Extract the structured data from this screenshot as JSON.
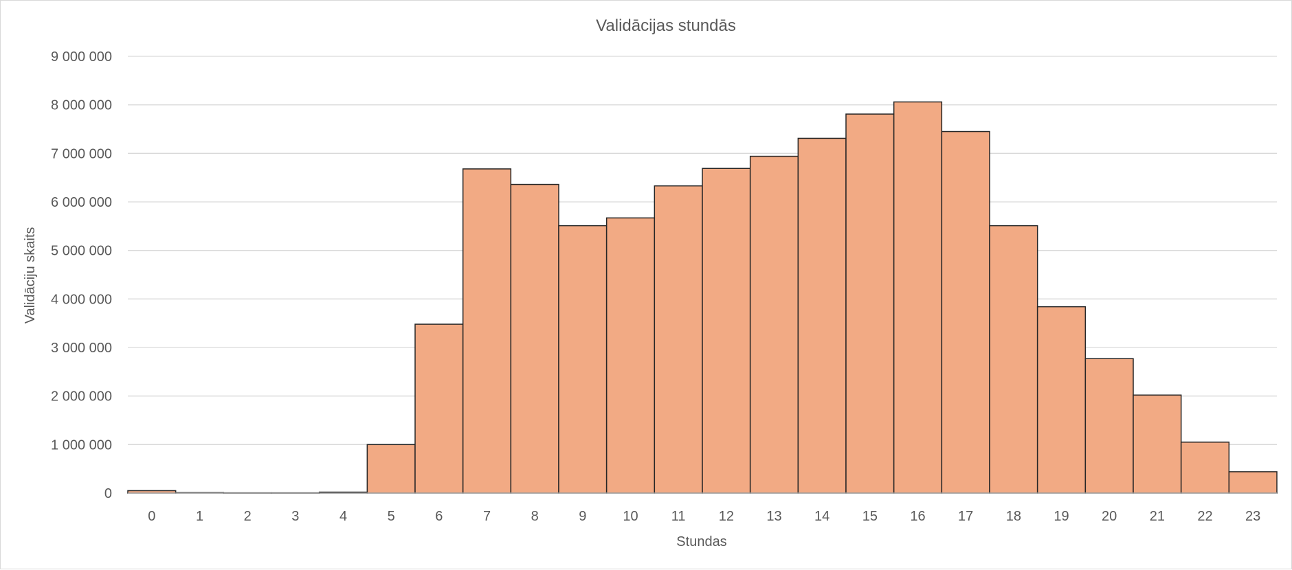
{
  "chart_data": {
    "type": "bar",
    "title": "Validācijas stundās",
    "xlabel": "Stundas",
    "ylabel": "Validāciju skaits",
    "categories": [
      "0",
      "1",
      "2",
      "3",
      "4",
      "5",
      "6",
      "7",
      "8",
      "9",
      "10",
      "11",
      "12",
      "13",
      "14",
      "15",
      "16",
      "17",
      "18",
      "19",
      "20",
      "21",
      "22",
      "23"
    ],
    "values": [
      50000,
      10000,
      5000,
      5000,
      20000,
      1000000,
      3480000,
      6680000,
      6360000,
      5510000,
      5670000,
      6330000,
      6690000,
      6940000,
      7310000,
      7810000,
      8060000,
      7450000,
      5510000,
      3840000,
      2770000,
      2020000,
      1050000,
      440000
    ],
    "ylim": [
      0,
      9000000
    ],
    "yticks": [
      0,
      1000000,
      2000000,
      3000000,
      4000000,
      5000000,
      6000000,
      7000000,
      8000000,
      9000000
    ],
    "ytick_labels": [
      "0",
      "1 000 000",
      "2 000 000",
      "3 000 000",
      "4 000 000",
      "5 000 000",
      "6 000 000",
      "7 000 000",
      "8 000 000",
      "9 000 000"
    ],
    "grid": true,
    "legend": "none",
    "colors": {
      "bar_fill": "#F2AA84",
      "bar_edge": "#262626",
      "grid": "#D9D9D9",
      "text": "#595959"
    }
  }
}
